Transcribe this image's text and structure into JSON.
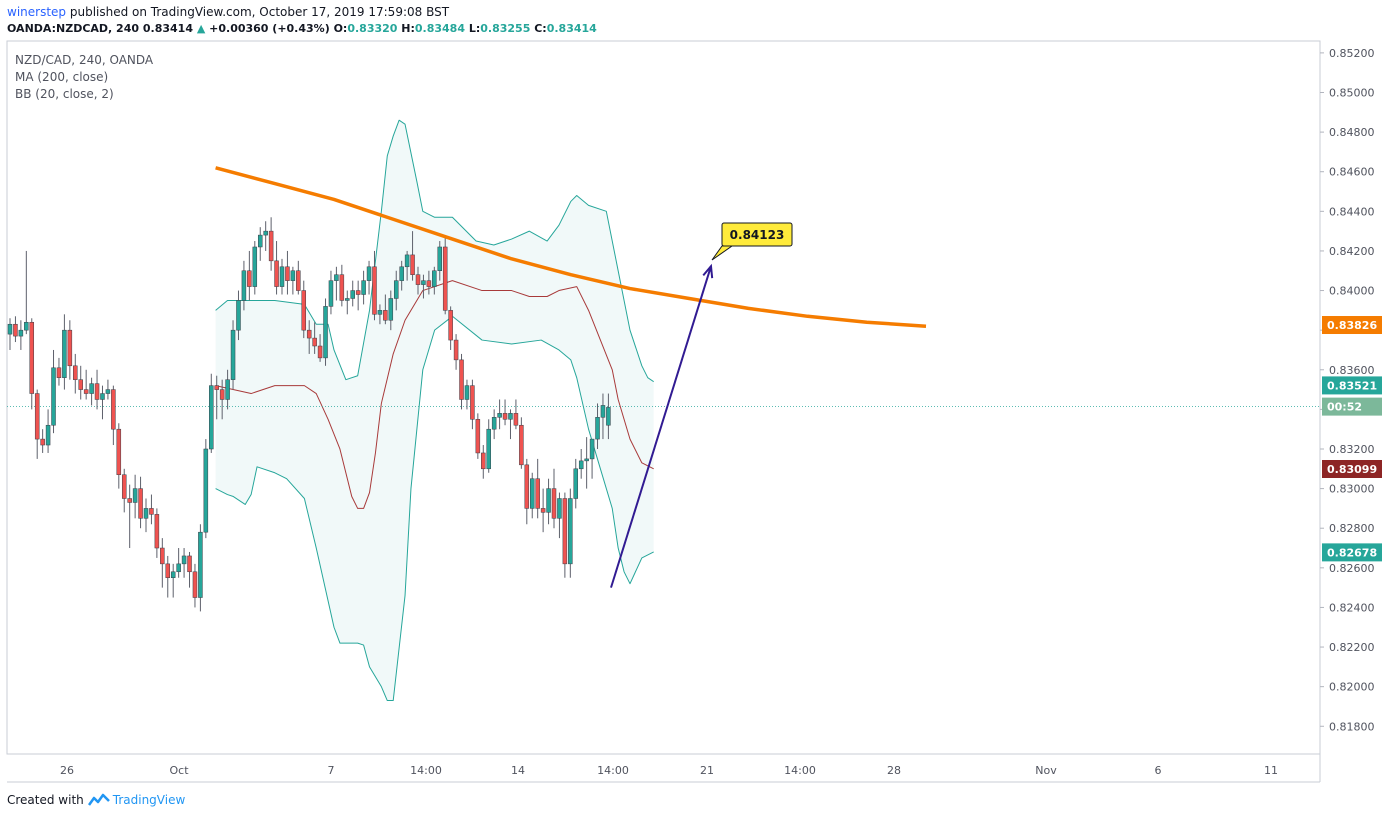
{
  "header": {
    "user": "winerstep",
    "published_text": "published on TradingView.com, October 17, 2019 17:59:08 BST",
    "symbol": "OANDA:NZDCAD, 240",
    "last": "0.83414",
    "change": "+0.00360 (+0.43%)",
    "o_label": "O:",
    "o": "0.83320",
    "h_label": "H:",
    "h": "0.83484",
    "l_label": "L:",
    "l": "0.83255",
    "c_label": "C:",
    "c": "0.83414"
  },
  "legend": [
    "NZD/CAD, 240, OANDA",
    "MA (200, close)",
    "BB (20, close, 2)"
  ],
  "footer": {
    "created_with": "Created with",
    "brand": "TradingView"
  },
  "colors": {
    "up": "#26a69a",
    "down": "#ef5350",
    "ma": "#f57c00",
    "bb_band": "#26a69a",
    "bb_basis": "#a83a3a",
    "bb_fill": "#e0f2f1",
    "arrow": "#311b92",
    "callout": "#ffeb3b"
  },
  "chart_data": {
    "type": "candlestick",
    "price_axis": {
      "ticks": [
        "0.85200",
        "0.85000",
        "0.84800",
        "0.84600",
        "0.84400",
        "0.84200",
        "0.84000",
        "0.83800",
        "0.83600",
        "0.83400",
        "0.83200",
        "0.83000",
        "0.82800",
        "0.82600",
        "0.82400",
        "0.82200",
        "0.82000",
        "0.81800"
      ],
      "range": [
        0.8166,
        0.8526
      ]
    },
    "time_axis": [
      "26",
      "Oct",
      "7",
      "14:00",
      "14",
      "14:00",
      "21",
      "14:00",
      "28",
      "Nov",
      "6",
      "11"
    ],
    "price_labels": [
      {
        "value": "0.83826",
        "color": "#f57c00"
      },
      {
        "value": "0.83521",
        "color": "#26a69a"
      },
      {
        "value": "00:52",
        "color": "#7cb89a",
        "price": 0.83414
      },
      {
        "value": "0.83099",
        "color": "#8d2525"
      },
      {
        "value": "0.82678",
        "color": "#26a69a"
      }
    ],
    "last_price": 0.83414,
    "ma200": [
      [
        -20,
        0.8462
      ],
      [
        -10,
        0.8454
      ],
      [
        0,
        0.8446
      ],
      [
        10,
        0.8436
      ],
      [
        20,
        0.8426
      ],
      [
        30,
        0.8416
      ],
      [
        40,
        0.8408
      ],
      [
        50,
        0.8401
      ],
      [
        60,
        0.8396
      ],
      [
        70,
        0.8391
      ],
      [
        80,
        0.8387
      ],
      [
        90,
        0.8384
      ],
      [
        100,
        0.8382
      ]
    ],
    "bb_upper": [
      [
        -20,
        0.839
      ],
      [
        -18,
        0.8395
      ],
      [
        -15,
        0.8395
      ],
      [
        -10,
        0.8395
      ],
      [
        -5,
        0.8393
      ],
      [
        -3,
        0.8383
      ],
      [
        -1,
        0.8383
      ],
      [
        0,
        0.837
      ],
      [
        2,
        0.8355
      ],
      [
        4,
        0.8357
      ],
      [
        6,
        0.839
      ],
      [
        8,
        0.844
      ],
      [
        9,
        0.8468
      ],
      [
        10,
        0.8478
      ],
      [
        11,
        0.8486
      ],
      [
        12,
        0.8484
      ],
      [
        14,
        0.8455
      ],
      [
        15,
        0.844
      ],
      [
        17,
        0.8437
      ],
      [
        20,
        0.8437
      ],
      [
        24,
        0.8425
      ],
      [
        27,
        0.8423
      ],
      [
        30,
        0.8426
      ],
      [
        33,
        0.843
      ],
      [
        36,
        0.8425
      ],
      [
        38,
        0.8433
      ],
      [
        40,
        0.8445
      ],
      [
        41,
        0.8448
      ],
      [
        43,
        0.8443
      ],
      [
        46,
        0.844
      ],
      [
        48,
        0.841
      ],
      [
        50,
        0.838
      ],
      [
        52,
        0.8362
      ],
      [
        53,
        0.8356
      ],
      [
        54,
        0.8354
      ]
    ],
    "bb_basis": [
      [
        -20,
        0.8352
      ],
      [
        -14,
        0.8348
      ],
      [
        -10,
        0.8352
      ],
      [
        -5,
        0.8352
      ],
      [
        -3,
        0.8348
      ],
      [
        -1,
        0.8335
      ],
      [
        1,
        0.832
      ],
      [
        3,
        0.8296
      ],
      [
        4,
        0.829
      ],
      [
        5,
        0.829
      ],
      [
        6,
        0.8298
      ],
      [
        7,
        0.8318
      ],
      [
        8,
        0.8343
      ],
      [
        10,
        0.8368
      ],
      [
        12,
        0.8385
      ],
      [
        15,
        0.84
      ],
      [
        20,
        0.8405
      ],
      [
        25,
        0.84
      ],
      [
        30,
        0.84
      ],
      [
        33,
        0.8397
      ],
      [
        36,
        0.8397
      ],
      [
        38,
        0.84
      ],
      [
        41,
        0.8402
      ],
      [
        43,
        0.839
      ],
      [
        45,
        0.8375
      ],
      [
        47,
        0.836
      ],
      [
        48,
        0.8345
      ],
      [
        50,
        0.8325
      ],
      [
        52,
        0.8313
      ],
      [
        54,
        0.831
      ]
    ],
    "bb_lower": [
      [
        -20,
        0.83
      ],
      [
        -18,
        0.8297
      ],
      [
        -17,
        0.8296
      ],
      [
        -15,
        0.8292
      ],
      [
        -14,
        0.8297
      ],
      [
        -13,
        0.8311
      ],
      [
        -10,
        0.8308
      ],
      [
        -8,
        0.8305
      ],
      [
        -5,
        0.8295
      ],
      [
        -3,
        0.827
      ],
      [
        0,
        0.823
      ],
      [
        1,
        0.8222
      ],
      [
        3,
        0.8222
      ],
      [
        4,
        0.8222
      ],
      [
        5,
        0.8221
      ],
      [
        6,
        0.821
      ],
      [
        8,
        0.82
      ],
      [
        9,
        0.8193
      ],
      [
        10,
        0.8193
      ],
      [
        12,
        0.8246
      ],
      [
        13,
        0.83
      ],
      [
        15,
        0.836
      ],
      [
        17,
        0.838
      ],
      [
        20,
        0.8387
      ],
      [
        25,
        0.8375
      ],
      [
        30,
        0.8373
      ],
      [
        35,
        0.8375
      ],
      [
        38,
        0.837
      ],
      [
        40,
        0.8365
      ],
      [
        41,
        0.8356
      ],
      [
        43,
        0.833
      ],
      [
        45,
        0.831
      ],
      [
        47,
        0.829
      ],
      [
        48,
        0.827
      ],
      [
        49,
        0.8258
      ],
      [
        50,
        0.8252
      ],
      [
        52,
        0.8265
      ],
      [
        54,
        0.8268
      ]
    ],
    "candles": [
      [
        0.8378,
        0.8386,
        0.837,
        0.8383
      ],
      [
        0.8383,
        0.8387,
        0.8374,
        0.8377
      ],
      [
        0.8377,
        0.8385,
        0.837,
        0.838
      ],
      [
        0.838,
        0.842,
        0.8378,
        0.8384
      ],
      [
        0.8384,
        0.8386,
        0.834,
        0.8348
      ],
      [
        0.8348,
        0.835,
        0.8315,
        0.8325
      ],
      [
        0.8325,
        0.833,
        0.8318,
        0.8322
      ],
      [
        0.8322,
        0.834,
        0.8318,
        0.8332
      ],
      [
        0.8332,
        0.837,
        0.8328,
        0.8361
      ],
      [
        0.8361,
        0.8366,
        0.8352,
        0.8356
      ],
      [
        0.8356,
        0.8388,
        0.835,
        0.838
      ],
      [
        0.838,
        0.8385,
        0.8355,
        0.8362
      ],
      [
        0.8362,
        0.8368,
        0.8348,
        0.8355
      ],
      [
        0.8355,
        0.8362,
        0.8345,
        0.835
      ],
      [
        0.835,
        0.836,
        0.8345,
        0.8348
      ],
      [
        0.8348,
        0.8356,
        0.8342,
        0.8353
      ],
      [
        0.8353,
        0.836,
        0.834,
        0.8345
      ],
      [
        0.8345,
        0.8352,
        0.8335,
        0.8348
      ],
      [
        0.8348,
        0.8355,
        0.8345,
        0.835
      ],
      [
        0.835,
        0.8352,
        0.8322,
        0.833
      ],
      [
        0.833,
        0.8333,
        0.83,
        0.8307
      ],
      [
        0.8307,
        0.831,
        0.8288,
        0.8295
      ],
      [
        0.8295,
        0.8302,
        0.827,
        0.8293
      ],
      [
        0.8293,
        0.8307,
        0.8285,
        0.83
      ],
      [
        0.83,
        0.8306,
        0.828,
        0.8285
      ],
      [
        0.8285,
        0.8295,
        0.8278,
        0.829
      ],
      [
        0.829,
        0.8297,
        0.8282,
        0.8287
      ],
      [
        0.8287,
        0.829,
        0.8265,
        0.827
      ],
      [
        0.827,
        0.8275,
        0.825,
        0.8262
      ],
      [
        0.8262,
        0.8266,
        0.8245,
        0.8255
      ],
      [
        0.8255,
        0.8262,
        0.8245,
        0.8258
      ],
      [
        0.8258,
        0.827,
        0.8255,
        0.8262
      ],
      [
        0.8262,
        0.827,
        0.8255,
        0.8266
      ],
      [
        0.8266,
        0.8268,
        0.825,
        0.8258
      ],
      [
        0.8258,
        0.8262,
        0.824,
        0.8245
      ],
      [
        0.8245,
        0.8282,
        0.8238,
        0.8278
      ],
      [
        0.8278,
        0.8325,
        0.8275,
        0.832
      ],
      [
        0.832,
        0.8358,
        0.8318,
        0.8352
      ],
      [
        0.8352,
        0.8357,
        0.8335,
        0.835
      ],
      [
        0.835,
        0.8355,
        0.8335,
        0.8345
      ],
      [
        0.8345,
        0.836,
        0.834,
        0.8355
      ],
      [
        0.8355,
        0.8385,
        0.835,
        0.838
      ],
      [
        0.838,
        0.84,
        0.8375,
        0.8395
      ],
      [
        0.8395,
        0.8415,
        0.839,
        0.841
      ],
      [
        0.841,
        0.842,
        0.8395,
        0.8402
      ],
      [
        0.8402,
        0.8425,
        0.8398,
        0.8422
      ],
      [
        0.8422,
        0.8432,
        0.8415,
        0.8428
      ],
      [
        0.8428,
        0.8435,
        0.842,
        0.843
      ],
      [
        0.843,
        0.8437,
        0.841,
        0.8415
      ],
      [
        0.8415,
        0.8425,
        0.8398,
        0.8402
      ],
      [
        0.8402,
        0.8416,
        0.8398,
        0.8412
      ],
      [
        0.8412,
        0.842,
        0.8398,
        0.8405
      ],
      [
        0.8405,
        0.8412,
        0.8398,
        0.841
      ],
      [
        0.841,
        0.8415,
        0.8398,
        0.84
      ],
      [
        0.84,
        0.8405,
        0.8376,
        0.838
      ],
      [
        0.838,
        0.8385,
        0.8368,
        0.8376
      ],
      [
        0.8376,
        0.8384,
        0.8368,
        0.8372
      ],
      [
        0.8372,
        0.8378,
        0.8364,
        0.8366
      ],
      [
        0.8366,
        0.8396,
        0.8362,
        0.8392
      ],
      [
        0.8392,
        0.841,
        0.8388,
        0.8405
      ],
      [
        0.8405,
        0.8412,
        0.8395,
        0.8408
      ],
      [
        0.8408,
        0.8413,
        0.8392,
        0.8395
      ],
      [
        0.8395,
        0.84,
        0.8388,
        0.8396
      ],
      [
        0.8396,
        0.8405,
        0.8392,
        0.84
      ],
      [
        0.84,
        0.8405,
        0.839,
        0.8398
      ],
      [
        0.8398,
        0.841,
        0.8393,
        0.8405
      ],
      [
        0.8405,
        0.8415,
        0.8398,
        0.8412
      ],
      [
        0.8412,
        0.842,
        0.8385,
        0.8388
      ],
      [
        0.8388,
        0.8393,
        0.8383,
        0.839
      ],
      [
        0.839,
        0.8398,
        0.8383,
        0.8385
      ],
      [
        0.8385,
        0.84,
        0.838,
        0.8396
      ],
      [
        0.8396,
        0.841,
        0.839,
        0.8405
      ],
      [
        0.8405,
        0.8415,
        0.84,
        0.8412
      ],
      [
        0.8412,
        0.842,
        0.8405,
        0.8418
      ],
      [
        0.8418,
        0.843,
        0.8405,
        0.8408
      ],
      [
        0.8408,
        0.8412,
        0.8398,
        0.8403
      ],
      [
        0.8403,
        0.8408,
        0.8396,
        0.8405
      ],
      [
        0.8405,
        0.841,
        0.8398,
        0.8402
      ],
      [
        0.8402,
        0.8412,
        0.8398,
        0.841
      ],
      [
        0.841,
        0.8425,
        0.8405,
        0.8422
      ],
      [
        0.8422,
        0.8428,
        0.8388,
        0.839
      ],
      [
        0.839,
        0.8392,
        0.837,
        0.8375
      ],
      [
        0.8375,
        0.8378,
        0.836,
        0.8365
      ],
      [
        0.8365,
        0.8368,
        0.834,
        0.8345
      ],
      [
        0.8345,
        0.8355,
        0.834,
        0.8352
      ],
      [
        0.8352,
        0.8355,
        0.833,
        0.8335
      ],
      [
        0.8335,
        0.8338,
        0.8315,
        0.8318
      ],
      [
        0.8318,
        0.8322,
        0.8305,
        0.831
      ],
      [
        0.831,
        0.8335,
        0.8308,
        0.833
      ],
      [
        0.833,
        0.834,
        0.8325,
        0.8336
      ],
      [
        0.8336,
        0.8345,
        0.833,
        0.8338
      ],
      [
        0.8338,
        0.8345,
        0.8332,
        0.8335
      ],
      [
        0.8335,
        0.834,
        0.8325,
        0.8338
      ],
      [
        0.8338,
        0.8345,
        0.833,
        0.8332
      ],
      [
        0.8332,
        0.8336,
        0.831,
        0.8312
      ],
      [
        0.8312,
        0.8315,
        0.8282,
        0.829
      ],
      [
        0.829,
        0.8308,
        0.8285,
        0.8305
      ],
      [
        0.8305,
        0.8315,
        0.8285,
        0.829
      ],
      [
        0.829,
        0.83,
        0.8278,
        0.8288
      ],
      [
        0.8288,
        0.8305,
        0.8282,
        0.83
      ],
      [
        0.83,
        0.831,
        0.828,
        0.8285
      ],
      [
        0.8285,
        0.8298,
        0.8275,
        0.8295
      ],
      [
        0.8295,
        0.8298,
        0.8255,
        0.8262
      ],
      [
        0.8262,
        0.83,
        0.8255,
        0.8295
      ],
      [
        0.8295,
        0.8315,
        0.829,
        0.831
      ],
      [
        0.831,
        0.832,
        0.8305,
        0.8314
      ],
      [
        0.8314,
        0.8326,
        0.83,
        0.8315
      ],
      [
        0.8315,
        0.8325,
        0.8305,
        0.8325
      ],
      [
        0.8325,
        0.8343,
        0.832,
        0.8336
      ],
      [
        0.8336,
        0.8348,
        0.8325,
        0.8342
      ],
      [
        0.8332,
        0.8348,
        0.8325,
        0.8341
      ]
    ],
    "annotations": [
      {
        "type": "trend-arrow",
        "from": {
          "date": "Oct 16 10:00",
          "price": 0.825
        },
        "to": {
          "date": "Oct 20 22:00",
          "price": 0.84123
        }
      },
      {
        "type": "price-callout",
        "text": "0.84123",
        "price": 0.84123
      }
    ]
  }
}
